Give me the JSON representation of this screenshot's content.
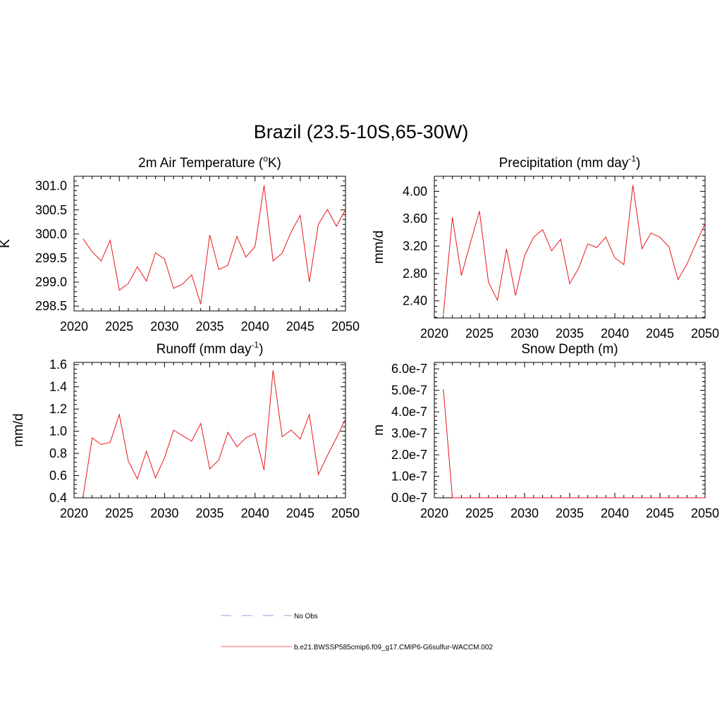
{
  "figure": {
    "title": "Brazil (23.5-10S,65-30W)"
  },
  "legend": {
    "items": [
      {
        "label": "No Obs",
        "color": "#9999dd",
        "style": "dashed"
      },
      {
        "label": "b.e21.BWSSP585cmip6.f09_g17.CMIP6-G6sulfur-WACCM.002",
        "color": "#ff6666",
        "style": "solid"
      }
    ]
  },
  "chart_data": [
    {
      "type": "line",
      "title": "2m Air Temperature (°K)",
      "title_parts": {
        "base": "2m Air Temperature (",
        "sup": "o",
        "rest": "K)"
      },
      "ylabel": "K",
      "xlim": [
        2020,
        2050
      ],
      "ylim": [
        298.4,
        301.2
      ],
      "xticks": [
        2020,
        2025,
        2030,
        2035,
        2040,
        2045,
        2050
      ],
      "yticks": [
        298.5,
        299.0,
        299.5,
        300.0,
        300.5,
        301.0
      ],
      "ytick_labels": [
        "298.5",
        "299.0",
        "299.5",
        "300.0",
        "300.5",
        "301.0"
      ],
      "color": "#e8161b",
      "x": [
        2021,
        2022,
        2023,
        2024,
        2025,
        2026,
        2027,
        2028,
        2029,
        2030,
        2031,
        2032,
        2033,
        2034,
        2035,
        2036,
        2037,
        2038,
        2039,
        2040,
        2041,
        2042,
        2043,
        2044,
        2045,
        2046,
        2047,
        2048,
        2049,
        2050
      ],
      "y": [
        299.9,
        299.63,
        299.44,
        299.87,
        298.83,
        298.97,
        299.32,
        299.02,
        299.61,
        299.48,
        298.87,
        298.96,
        299.15,
        298.54,
        299.98,
        299.26,
        299.35,
        299.95,
        299.52,
        299.74,
        301.01,
        299.44,
        299.6,
        300.04,
        300.39,
        299.0,
        300.2,
        300.51,
        300.16,
        300.51
      ]
    },
    {
      "type": "line",
      "title": "Precipitation (mm day-1)",
      "title_parts": {
        "base": "Precipitation (mm day",
        "sup": "-1",
        "rest": ")"
      },
      "ylabel": "mm/d",
      "xlim": [
        2020,
        2050
      ],
      "ylim": [
        2.15,
        4.22
      ],
      "xticks": [
        2020,
        2025,
        2030,
        2035,
        2040,
        2045,
        2050
      ],
      "yticks": [
        2.4,
        2.8,
        3.2,
        3.6,
        4.0
      ],
      "ytick_labels": [
        "2.40",
        "2.80",
        "3.20",
        "3.60",
        "4.00"
      ],
      "color": "#e8161b",
      "x": [
        2021,
        2022,
        2023,
        2024,
        2025,
        2026,
        2027,
        2028,
        2029,
        2030,
        2031,
        2032,
        2033,
        2034,
        2035,
        2036,
        2037,
        2038,
        2039,
        2040,
        2041,
        2042,
        2043,
        2044,
        2045,
        2046,
        2047,
        2048,
        2049,
        2050
      ],
      "y": [
        2.2,
        3.62,
        2.77,
        3.25,
        3.71,
        2.67,
        2.41,
        3.16,
        2.48,
        3.06,
        3.33,
        3.44,
        3.13,
        3.3,
        2.65,
        2.88,
        3.23,
        3.18,
        3.33,
        3.03,
        2.93,
        4.09,
        3.16,
        3.39,
        3.33,
        3.19,
        2.71,
        2.94,
        3.24,
        3.53
      ]
    },
    {
      "type": "line",
      "title": "Runoff (mm day-1)",
      "title_parts": {
        "base": "Runoff (mm day",
        "sup": "-1",
        "rest": ")"
      },
      "ylabel": "mm/d",
      "xlim": [
        2020,
        2050
      ],
      "ylim": [
        0.4,
        1.62
      ],
      "xticks": [
        2020,
        2025,
        2030,
        2035,
        2040,
        2045,
        2050
      ],
      "yticks": [
        0.4,
        0.6,
        0.8,
        1.0,
        1.2,
        1.4,
        1.6
      ],
      "ytick_labels": [
        "0.4",
        "0.6",
        "0.8",
        "1.0",
        "1.2",
        "1.4",
        "1.6"
      ],
      "color": "#e8161b",
      "x": [
        2021,
        2022,
        2023,
        2024,
        2025,
        2026,
        2027,
        2028,
        2029,
        2030,
        2031,
        2032,
        2033,
        2034,
        2035,
        2036,
        2037,
        2038,
        2039,
        2040,
        2041,
        2042,
        2043,
        2044,
        2045,
        2046,
        2047,
        2048,
        2049,
        2050
      ],
      "y": [
        0.41,
        0.94,
        0.88,
        0.9,
        1.15,
        0.73,
        0.57,
        0.82,
        0.58,
        0.76,
        1.01,
        0.96,
        0.91,
        1.07,
        0.66,
        0.74,
        0.99,
        0.86,
        0.94,
        0.98,
        0.65,
        1.55,
        0.95,
        1.01,
        0.93,
        1.15,
        0.61,
        0.78,
        0.94,
        1.11
      ]
    },
    {
      "type": "line",
      "title": "Snow Depth (m)",
      "title_parts": {
        "base": "Snow Depth (m)",
        "sup": "",
        "rest": ""
      },
      "ylabel": "m",
      "xlim": [
        2020,
        2050
      ],
      "ylim": [
        0,
        6.3e-07
      ],
      "xticks": [
        2020,
        2025,
        2030,
        2035,
        2040,
        2045,
        2050
      ],
      "yticks": [
        0,
        1e-07,
        2e-07,
        3e-07,
        4e-07,
        5e-07,
        6e-07
      ],
      "ytick_labels": [
        "0.0e-7",
        "1.0e-7",
        "2.0e-7",
        "3.0e-7",
        "4.0e-7",
        "5.0e-7",
        "6.0e-7"
      ],
      "color": "#e8161b",
      "x": [
        2021,
        2022,
        2023,
        2024,
        2025,
        2026,
        2027,
        2028,
        2029,
        2030,
        2031,
        2032,
        2033,
        2034,
        2035,
        2036,
        2037,
        2038,
        2039,
        2040,
        2041,
        2042,
        2043,
        2044,
        2045,
        2046,
        2047,
        2048,
        2049,
        2050
      ],
      "y": [
        5.05e-07,
        0,
        0,
        0,
        0,
        0,
        0,
        0,
        0,
        0,
        0,
        0,
        0,
        0,
        0,
        0,
        0,
        0,
        0,
        0,
        0,
        0,
        0,
        0,
        0,
        0,
        0,
        0,
        0,
        0
      ]
    }
  ]
}
